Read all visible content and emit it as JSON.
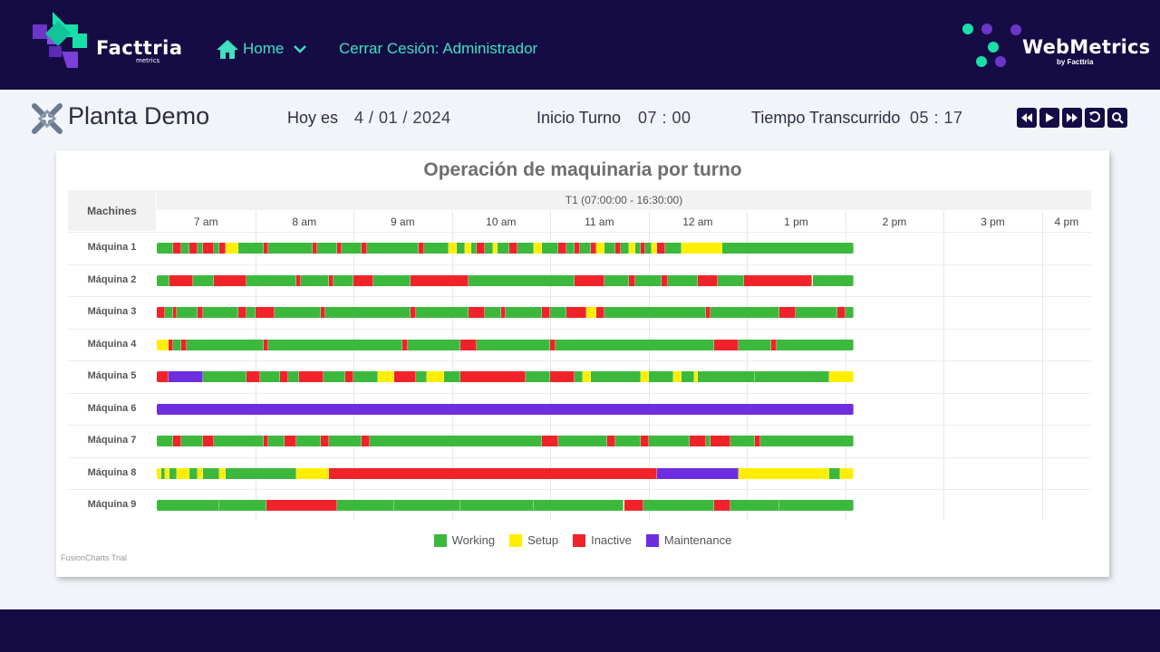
{
  "header": {
    "brand": {
      "name": "Facttria",
      "sub": "metrics"
    },
    "nav_home": "Home",
    "nav_logout": "Cerrar Cesión: Administrador",
    "webmetrics": {
      "name": "WebMetrics",
      "sub": "by Facttria"
    }
  },
  "info": {
    "plant": "Planta Demo",
    "today_label": "Hoy es",
    "today_value": "4 / 01 / 2024",
    "shift_start_label": "Inicio Turno",
    "shift_start_value": "07 :  00",
    "elapsed_label": "Tiempo Transcurrido",
    "elapsed_value": "05 :  17"
  },
  "controls": [
    "rewind-icon",
    "play-icon",
    "fast-forward-icon",
    "reload-icon",
    "search-icon"
  ],
  "chart_data": {
    "type": "gantt",
    "title": "Operación  de  maquinaria  por  turno",
    "machines_header": "Machines",
    "shift_label": "T1 (07:00:00 - 16:30:00)",
    "x_range": [
      "07:00",
      "16:30"
    ],
    "hours": [
      "7 am",
      "8 am",
      "9 am",
      "10 am",
      "11 am",
      "12 am",
      "1 pm",
      "2 pm",
      "3 pm",
      "4 pm"
    ],
    "status_colors": {
      "W": "#3cb93c",
      "S": "#ffee00",
      "I": "#f0232b",
      "M": "#6d2ee0"
    },
    "legend": [
      {
        "key": "W",
        "label": "Working"
      },
      {
        "key": "S",
        "label": "Setup"
      },
      {
        "key": "I",
        "label": "Inactive"
      },
      {
        "key": "M",
        "label": "Maintenance"
      }
    ],
    "rows": [
      {
        "name": "Máquina 1",
        "segments": [
          [
            "07:00",
            "W"
          ],
          [
            "07:10",
            "I"
          ],
          [
            "07:15",
            "W"
          ],
          [
            "07:20",
            "I"
          ],
          [
            "07:25",
            "W"
          ],
          [
            "07:28",
            "I"
          ],
          [
            "07:35",
            "W"
          ],
          [
            "07:38",
            "I"
          ],
          [
            "07:42",
            "S"
          ],
          [
            "07:50",
            "W"
          ],
          [
            "08:05",
            "I"
          ],
          [
            "08:08",
            "W"
          ],
          [
            "08:35",
            "I"
          ],
          [
            "08:38",
            "W"
          ],
          [
            "08:50",
            "I"
          ],
          [
            "08:53",
            "W"
          ],
          [
            "09:05",
            "I"
          ],
          [
            "09:08",
            "W"
          ],
          [
            "09:40",
            "I"
          ],
          [
            "09:43",
            "W"
          ],
          [
            "09:58",
            "S"
          ],
          [
            "10:03",
            "W"
          ],
          [
            "10:08",
            "S"
          ],
          [
            "10:12",
            "W"
          ],
          [
            "10:15",
            "I"
          ],
          [
            "10:20",
            "W"
          ],
          [
            "10:25",
            "S"
          ],
          [
            "10:28",
            "W"
          ],
          [
            "10:35",
            "I"
          ],
          [
            "10:40",
            "W"
          ],
          [
            "10:50",
            "S"
          ],
          [
            "10:55",
            "W"
          ],
          [
            "11:05",
            "I"
          ],
          [
            "11:10",
            "W"
          ],
          [
            "11:15",
            "I"
          ],
          [
            "11:18",
            "W"
          ],
          [
            "11:25",
            "I"
          ],
          [
            "11:28",
            "S"
          ],
          [
            "11:33",
            "W"
          ],
          [
            "11:40",
            "I"
          ],
          [
            "11:43",
            "W"
          ],
          [
            "11:48",
            "S"
          ],
          [
            "11:52",
            "W"
          ],
          [
            "11:55",
            "I"
          ],
          [
            "11:58",
            "W"
          ],
          [
            "12:02",
            "S"
          ],
          [
            "12:05",
            "I"
          ],
          [
            "12:10",
            "W"
          ],
          [
            "12:20",
            "S"
          ],
          [
            "12:45",
            "W"
          ],
          [
            "14:05",
            "W"
          ]
        ]
      },
      {
        "name": "Máquina 2",
        "segments": [
          [
            "07:00",
            "W"
          ],
          [
            "07:08",
            "I"
          ],
          [
            "07:22",
            "W"
          ],
          [
            "07:35",
            "I"
          ],
          [
            "07:55",
            "W"
          ],
          [
            "08:25",
            "I"
          ],
          [
            "08:28",
            "W"
          ],
          [
            "08:45",
            "I"
          ],
          [
            "08:48",
            "W"
          ],
          [
            "09:00",
            "I"
          ],
          [
            "09:12",
            "W"
          ],
          [
            "09:35",
            "I"
          ],
          [
            "10:10",
            "W"
          ],
          [
            "11:15",
            "I"
          ],
          [
            "11:33",
            "W"
          ],
          [
            "11:48",
            "I"
          ],
          [
            "11:52",
            "W"
          ],
          [
            "12:08",
            "I"
          ],
          [
            "12:12",
            "W"
          ],
          [
            "12:30",
            "I"
          ],
          [
            "12:42",
            "W"
          ],
          [
            "12:58",
            "I"
          ],
          [
            "13:40",
            "W"
          ],
          [
            "14:05",
            "W"
          ]
        ]
      },
      {
        "name": "Máquina 3",
        "segments": [
          [
            "07:00",
            "I"
          ],
          [
            "07:05",
            "W"
          ],
          [
            "07:10",
            "I"
          ],
          [
            "07:12",
            "W"
          ],
          [
            "07:25",
            "I"
          ],
          [
            "07:28",
            "W"
          ],
          [
            "07:50",
            "I"
          ],
          [
            "07:55",
            "W"
          ],
          [
            "08:00",
            "I"
          ],
          [
            "08:12",
            "W"
          ],
          [
            "08:40",
            "I"
          ],
          [
            "08:43",
            "W"
          ],
          [
            "09:35",
            "I"
          ],
          [
            "09:38",
            "W"
          ],
          [
            "10:10",
            "I"
          ],
          [
            "10:20",
            "W"
          ],
          [
            "10:30",
            "I"
          ],
          [
            "10:33",
            "W"
          ],
          [
            "10:55",
            "I"
          ],
          [
            "11:00",
            "W"
          ],
          [
            "11:10",
            "I"
          ],
          [
            "11:22",
            "S"
          ],
          [
            "11:28",
            "I"
          ],
          [
            "11:33",
            "W"
          ],
          [
            "12:35",
            "I"
          ],
          [
            "12:38",
            "W"
          ],
          [
            "13:20",
            "I"
          ],
          [
            "13:30",
            "W"
          ],
          [
            "13:55",
            "I"
          ],
          [
            "14:00",
            "W"
          ],
          [
            "14:05",
            "W"
          ]
        ]
      },
      {
        "name": "Máquina 4",
        "segments": [
          [
            "07:00",
            "S"
          ],
          [
            "07:07",
            "I"
          ],
          [
            "07:10",
            "W"
          ],
          [
            "07:15",
            "I"
          ],
          [
            "07:18",
            "W"
          ],
          [
            "08:05",
            "I"
          ],
          [
            "08:08",
            "W"
          ],
          [
            "09:30",
            "I"
          ],
          [
            "09:33",
            "W"
          ],
          [
            "10:05",
            "I"
          ],
          [
            "10:15",
            "W"
          ],
          [
            "11:00",
            "I"
          ],
          [
            "11:03",
            "W"
          ],
          [
            "12:40",
            "I"
          ],
          [
            "12:55",
            "W"
          ],
          [
            "13:15",
            "I"
          ],
          [
            "13:18",
            "W"
          ],
          [
            "14:05",
            "W"
          ]
        ]
      },
      {
        "name": "Máquina 5",
        "segments": [
          [
            "07:00",
            "I"
          ],
          [
            "07:07",
            "M"
          ],
          [
            "07:28",
            "W"
          ],
          [
            "07:55",
            "I"
          ],
          [
            "08:03",
            "W"
          ],
          [
            "08:15",
            "I"
          ],
          [
            "08:20",
            "W"
          ],
          [
            "08:27",
            "I"
          ],
          [
            "08:42",
            "W"
          ],
          [
            "08:55",
            "I"
          ],
          [
            "09:00",
            "W"
          ],
          [
            "09:15",
            "S"
          ],
          [
            "09:25",
            "I"
          ],
          [
            "09:38",
            "W"
          ],
          [
            "09:45",
            "S"
          ],
          [
            "09:55",
            "W"
          ],
          [
            "10:05",
            "I"
          ],
          [
            "10:45",
            "W"
          ],
          [
            "11:00",
            "I"
          ],
          [
            "11:15",
            "W"
          ],
          [
            "11:20",
            "S"
          ],
          [
            "11:25",
            "W"
          ],
          [
            "11:55",
            "S"
          ],
          [
            "12:00",
            "W"
          ],
          [
            "12:15",
            "S"
          ],
          [
            "12:20",
            "W"
          ],
          [
            "12:28",
            "S"
          ],
          [
            "12:30",
            "W"
          ],
          [
            "13:05",
            "W"
          ],
          [
            "13:50",
            "S"
          ],
          [
            "14:05",
            "W"
          ]
        ]
      },
      {
        "name": "Máquina 6",
        "segments": [
          [
            "07:00",
            "M"
          ],
          [
            "14:05",
            "M"
          ]
        ]
      },
      {
        "name": "Máquina 7",
        "segments": [
          [
            "07:00",
            "W"
          ],
          [
            "07:10",
            "I"
          ],
          [
            "07:15",
            "W"
          ],
          [
            "07:28",
            "I"
          ],
          [
            "07:35",
            "W"
          ],
          [
            "08:05",
            "I"
          ],
          [
            "08:08",
            "W"
          ],
          [
            "08:18",
            "I"
          ],
          [
            "08:25",
            "W"
          ],
          [
            "08:40",
            "I"
          ],
          [
            "08:45",
            "W"
          ],
          [
            "09:05",
            "I"
          ],
          [
            "09:10",
            "W"
          ],
          [
            "10:55",
            "I"
          ],
          [
            "11:05",
            "W"
          ],
          [
            "11:35",
            "I"
          ],
          [
            "11:40",
            "W"
          ],
          [
            "11:55",
            "I"
          ],
          [
            "12:00",
            "W"
          ],
          [
            "12:25",
            "I"
          ],
          [
            "12:35",
            "W"
          ],
          [
            "12:38",
            "I"
          ],
          [
            "12:50",
            "W"
          ],
          [
            "13:05",
            "I"
          ],
          [
            "13:08",
            "W"
          ],
          [
            "14:05",
            "W"
          ]
        ]
      },
      {
        "name": "Máquina 8",
        "segments": [
          [
            "07:00",
            "S"
          ],
          [
            "07:03",
            "W"
          ],
          [
            "07:05",
            "S"
          ],
          [
            "07:08",
            "W"
          ],
          [
            "07:12",
            "S"
          ],
          [
            "07:20",
            "W"
          ],
          [
            "07:25",
            "S"
          ],
          [
            "07:28",
            "W"
          ],
          [
            "07:38",
            "S"
          ],
          [
            "07:42",
            "W"
          ],
          [
            "08:25",
            "S"
          ],
          [
            "08:45",
            "I"
          ],
          [
            "12:05",
            "M"
          ],
          [
            "12:55",
            "S"
          ],
          [
            "13:50",
            "W"
          ],
          [
            "13:57",
            "S"
          ],
          [
            "14:05",
            "S"
          ]
        ]
      },
      {
        "name": "Máquina 9",
        "segments": [
          [
            "07:00",
            "W"
          ],
          [
            "07:38",
            "W"
          ],
          [
            "08:07",
            "I"
          ],
          [
            "08:50",
            "W"
          ],
          [
            "09:25",
            "W"
          ],
          [
            "10:05",
            "W"
          ],
          [
            "10:50",
            "W"
          ],
          [
            "11:45",
            "I"
          ],
          [
            "11:57",
            "W"
          ],
          [
            "12:40",
            "I"
          ],
          [
            "12:50",
            "W"
          ],
          [
            "13:20",
            "W"
          ],
          [
            "14:05",
            "W"
          ]
        ]
      }
    ],
    "trial_label": "FusionCharts Trial"
  }
}
